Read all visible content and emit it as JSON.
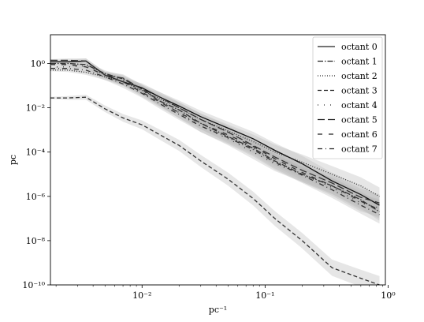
{
  "chart_data": {
    "type": "line",
    "title": "",
    "xlabel": "pc⁻¹",
    "ylabel": "pc",
    "xscale": "log",
    "yscale": "log",
    "xlim": [
      0.0018,
      0.95
    ],
    "ylim": [
      1e-10,
      20
    ],
    "grid": false,
    "legend_position": "top-right",
    "x_ticks": [
      {
        "value": 0.01,
        "label": "10⁻²"
      },
      {
        "value": 0.1,
        "label": "10⁻¹"
      },
      {
        "value": 1,
        "label": "10⁰"
      }
    ],
    "y_ticks": [
      {
        "value": 1,
        "label": "10⁰"
      },
      {
        "value": 0.01,
        "label": "10⁻²"
      },
      {
        "value": 0.0001,
        "label": "10⁻⁴"
      },
      {
        "value": 1e-06,
        "label": "10⁻⁶"
      },
      {
        "value": 1e-08,
        "label": "10⁻⁸"
      },
      {
        "value": 1e-10,
        "label": "10⁻¹⁰"
      }
    ],
    "x": [
      0.0018,
      0.0025,
      0.0035,
      0.005,
      0.007,
      0.01,
      0.014,
      0.02,
      0.03,
      0.05,
      0.08,
      0.12,
      0.2,
      0.35,
      0.6,
      0.85
    ],
    "series": [
      {
        "name": "octant 0",
        "dash": "solid",
        "values": [
          1.2,
          1.2,
          1.3,
          0.3,
          0.15,
          0.08,
          0.03,
          0.012,
          0.004,
          0.0012,
          0.0004,
          0.00012,
          3e-05,
          5e-06,
          1.2e-06,
          4e-07
        ]
      },
      {
        "name": "octant 1",
        "dash": "dashdot",
        "values": [
          1.0,
          1.0,
          0.9,
          0.35,
          0.2,
          0.07,
          0.02,
          0.008,
          0.002,
          0.0005,
          0.00015,
          4e-05,
          1e-05,
          3e-06,
          7e-07,
          2e-07
        ]
      },
      {
        "name": "octant 2",
        "dash": "dotted",
        "values": [
          0.5,
          0.5,
          0.4,
          0.25,
          0.15,
          0.06,
          0.025,
          0.01,
          0.003,
          0.0009,
          0.0003,
          0.0001,
          3.5e-05,
          1e-05,
          3e-06,
          1e-06
        ]
      },
      {
        "name": "octant 3",
        "dash": "dashed",
        "values": [
          0.028,
          0.028,
          0.03,
          0.009,
          0.0035,
          0.0017,
          0.0006,
          0.0002,
          4e-05,
          6e-06,
          8e-07,
          1e-07,
          1e-08,
          6e-10,
          2e-10,
          1e-10
        ]
      },
      {
        "name": "octant 4",
        "dash": "loosedot",
        "values": [
          0.7,
          0.7,
          0.8,
          0.3,
          0.18,
          0.06,
          0.02,
          0.006,
          0.0015,
          0.0004,
          0.0001,
          3e-05,
          1e-05,
          2.5e-06,
          5e-07,
          3e-07
        ]
      },
      {
        "name": "octant 5",
        "dash": "longdash",
        "values": [
          1.4,
          1.4,
          1.3,
          0.3,
          0.22,
          0.07,
          0.03,
          0.01,
          0.003,
          0.0008,
          0.0002,
          6e-05,
          1.5e-05,
          4e-06,
          9e-07,
          5e-07
        ]
      },
      {
        "name": "octant 6",
        "dash": "dashsparse",
        "values": [
          0.9,
          0.9,
          0.7,
          0.3,
          0.15,
          0.05,
          0.018,
          0.006,
          0.002,
          0.0006,
          0.00018,
          5e-05,
          1.2e-05,
          3e-06,
          6e-07,
          2.5e-07
        ]
      },
      {
        "name": "octant 7",
        "dash": "dashdotsparse",
        "values": [
          0.6,
          0.6,
          0.5,
          0.25,
          0.12,
          0.045,
          0.015,
          0.005,
          0.0015,
          0.00045,
          0.00013,
          3.5e-05,
          9e-06,
          2e-06,
          4e-07,
          1.5e-07
        ]
      }
    ]
  }
}
